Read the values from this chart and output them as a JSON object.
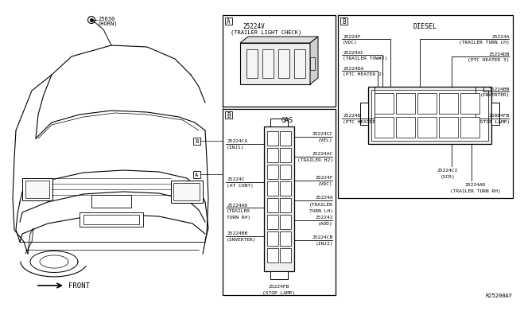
{
  "ref_code": "R25200AY",
  "bg_color": "#ffffff",
  "line_color": "#000000",
  "text_color": "#000000",
  "fs": 5.0,
  "horn": {
    "num": "25630",
    "label": "(HORN)"
  },
  "front_label": "← FRONT",
  "box_A": {
    "label": "A",
    "title1": "25224V",
    "title2": "(TRAILER LIGHT CHECK)"
  },
  "box_B_gas": {
    "label": "B",
    "title": "GAS",
    "left_labels": [
      [
        "25224CA",
        "(INJ1)"
      ],
      [
        "25224C",
        "(AT CONT)"
      ],
      [
        "25224AD",
        "(TRAILER",
        "TURN RH)"
      ],
      [
        "25224BB",
        "(INVERTER)"
      ]
    ],
    "right_labels": [
      [
        "25224CC",
        "(VEL)"
      ],
      [
        "25224AC",
        "(TRAILER H2)"
      ],
      [
        "25224F",
        "(VDC)"
      ],
      [
        "25224A",
        "(TRAILER",
        "TURN LH)"
      ],
      [
        "252242",
        "(ADD)"
      ],
      [
        "25224CB",
        "(INJ2)"
      ]
    ],
    "bottom": [
      "25224FB",
      "(STOP LAMP)"
    ]
  },
  "box_B_diesel": {
    "label": "B",
    "title": "DIESEL",
    "left_labels": [
      [
        "25224F",
        "(VDC)"
      ],
      [
        "25224AC",
        "(TRAILER TOW#2)"
      ],
      [
        "25224DA",
        "(PTC HEATER 2)"
      ],
      [
        "25224D",
        "(PTC HEATER 1)"
      ]
    ],
    "right_labels": [
      [
        "25224A",
        "(TRAILER TURN LH)"
      ],
      [
        "25224DB",
        "(PTC HEATER 3)"
      ],
      [
        "25224BB",
        "(INVERTER)"
      ],
      [
        "25884FB",
        "(STOP LAMP)"
      ]
    ],
    "bottom_left": [
      "25224CI",
      "(SCR)"
    ],
    "bottom_center": [
      "25224AD",
      "(TRAILER TURN RH)"
    ]
  }
}
